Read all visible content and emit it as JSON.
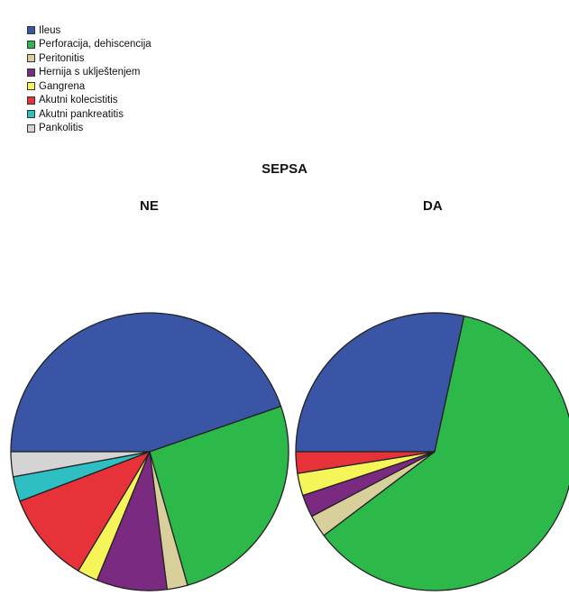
{
  "chart_data": {
    "type": "pie",
    "title": "SEPSA",
    "legend_position": "top-left",
    "categories": [
      "Ileus",
      "Perforacija, dehiscencija",
      "Peritonitis",
      "Hernija s uklještenjem",
      "Gangrena",
      "Akutni kolecistitis",
      "Akutni pankreatitis",
      "Pankolitis"
    ],
    "colors": [
      "#3a55a5",
      "#2db84a",
      "#d8cf9a",
      "#7b2a82",
      "#f5f55a",
      "#e8323a",
      "#2ebfc2",
      "#d4d4d4"
    ],
    "pies": [
      {
        "title": "NE",
        "values": [
          44.7,
          25.9,
          2.4,
          8.2,
          2.4,
          10.6,
          2.9,
          2.9
        ]
      },
      {
        "title": "DA",
        "values": [
          28.4,
          61.3,
          2.6,
          2.6,
          2.6,
          2.5,
          0,
          0
        ]
      }
    ]
  }
}
